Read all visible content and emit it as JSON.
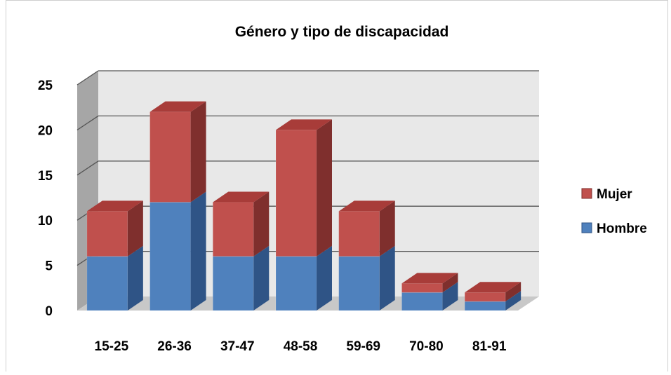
{
  "chart_data": {
    "type": "bar",
    "stacked": true,
    "three_d": true,
    "title": "Género y tipo de discapacidad",
    "xlabel": "",
    "ylabel": "",
    "categories": [
      "15-25",
      "26-36",
      "37-47",
      "48-58",
      "59-69",
      "70-80",
      "81-91"
    ],
    "series": [
      {
        "name": "Hombre",
        "values": [
          6,
          12,
          6,
          6,
          6,
          2,
          1
        ],
        "color": "#4F81BD",
        "side": "#2F5486",
        "top": "#7FA4D4"
      },
      {
        "name": "Mujer",
        "values": [
          5,
          10,
          6,
          14,
          5,
          1,
          1
        ],
        "color": "#C0504D",
        "side": "#7F2F2D",
        "top": "#A83C39"
      }
    ],
    "ylim": [
      0,
      25
    ],
    "yticks": [
      0,
      5,
      10,
      15,
      20,
      25
    ],
    "grid": true,
    "legend_position": "right",
    "colors": {
      "wall": "#E8E8E8",
      "wall_side": "#A6A6A6",
      "floor": "#C8C8C8",
      "grid": "#555555"
    }
  }
}
